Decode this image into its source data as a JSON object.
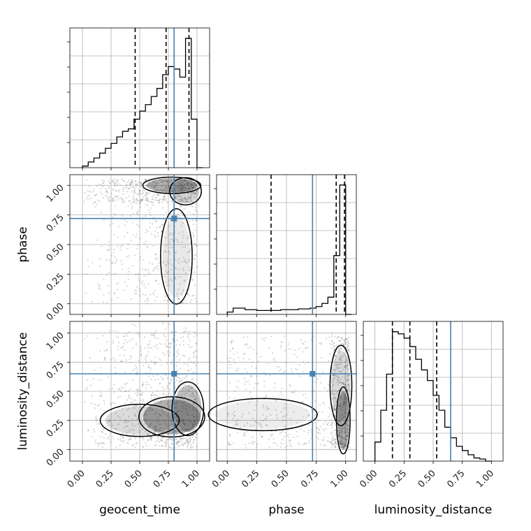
{
  "chart_data": {
    "type": "corner",
    "parameters": [
      "geocent_time",
      "phase",
      "luminosity_distance"
    ],
    "truths": {
      "geocent_time": 0.8,
      "phase": 0.72,
      "luminosity_distance": 0.65
    },
    "ranges": {
      "geocent_time": [
        -0.11,
        1.11
      ],
      "phase": [
        -0.09,
        1.09
      ],
      "luminosity_distance": [
        -0.1,
        1.1
      ]
    },
    "ticks": {
      "geocent_time": [
        "0.00",
        "0.25",
        "0.50",
        "0.75",
        "1.00"
      ],
      "phase": [
        "0.00",
        "0.25",
        "0.50",
        "0.75",
        "1.00"
      ],
      "luminosity_distance": [
        "0.00",
        "0.25",
        "0.50",
        "0.75",
        "1.00"
      ]
    },
    "tick_values": [
      0,
      0.25,
      0.5,
      0.75,
      1.0
    ],
    "quantiles": {
      "geocent_time": [
        0.46,
        0.73,
        0.93
      ],
      "phase": [
        0.37,
        0.92,
        0.99
      ],
      "luminosity_distance": [
        0.15,
        0.3,
        0.53
      ]
    },
    "histograms": {
      "geocent_time": {
        "edges": [
          0.0,
          0.05,
          0.1,
          0.15,
          0.2,
          0.25,
          0.3,
          0.35,
          0.4,
          0.45,
          0.5,
          0.55,
          0.6,
          0.65,
          0.7,
          0.75,
          0.8,
          0.85,
          0.9,
          0.95,
          1.0,
          1.05
        ],
        "counts": [
          2,
          7,
          12,
          18,
          24,
          30,
          38,
          45,
          48,
          60,
          70,
          78,
          88,
          98,
          115,
          125,
          122,
          112,
          160,
          60,
          0
        ]
      },
      "phase": {
        "edges": [
          0.0,
          0.05,
          0.1,
          0.15,
          0.2,
          0.25,
          0.3,
          0.35,
          0.4,
          0.45,
          0.5,
          0.55,
          0.6,
          0.65,
          0.7,
          0.75,
          0.8,
          0.85,
          0.9,
          0.95,
          1.0,
          1.05
        ],
        "counts": [
          3,
          8,
          8,
          6,
          6,
          5,
          5,
          5,
          5,
          6,
          6,
          6,
          7,
          7,
          8,
          10,
          14,
          22,
          75,
          165,
          0
        ]
      },
      "luminosity_distance": {
        "edges": [
          0.0,
          0.05,
          0.1,
          0.15,
          0.2,
          0.25,
          0.3,
          0.35,
          0.4,
          0.45,
          0.5,
          0.55,
          0.6,
          0.65,
          0.7,
          0.75,
          0.8,
          0.85,
          0.9,
          0.95,
          1.0
        ],
        "counts": [
          18,
          48,
          82,
          122,
          120,
          116,
          108,
          96,
          86,
          76,
          62,
          48,
          32,
          22,
          14,
          10,
          6,
          3,
          2,
          0
        ]
      }
    },
    "grid": true,
    "colors": {
      "truth": "#4682b4",
      "line": "#000000",
      "grid": "#b0b0b0"
    }
  }
}
